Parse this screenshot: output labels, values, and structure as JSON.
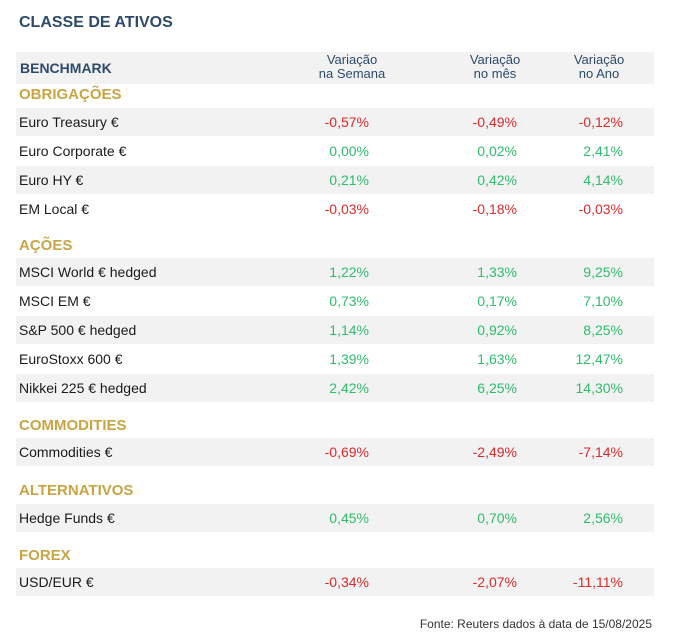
{
  "title": "CLASSE DE ATIVOS",
  "header": {
    "benchmark": "BENCHMARK",
    "col_week": "Variação\nna Semana",
    "col_month": "Variação\nno mês",
    "col_year": "Variação\nno Ano"
  },
  "sections": {
    "obrigacoes": "OBRIGAÇÕES",
    "acoes": "AÇÕES",
    "commodities": "COMMODITIES",
    "alternativos": "ALTERNATIVOS",
    "forex": "FOREX"
  },
  "rows": [
    {
      "name": "Euro Treasury €",
      "week": "-0,57%",
      "month": "-0,49%",
      "year": "-0,12%"
    },
    {
      "name": "Euro Corporate €",
      "week": "0,00%",
      "month": "0,02%",
      "year": "2,41%"
    },
    {
      "name": "Euro HY €",
      "week": "0,21%",
      "month": "0,42%",
      "year": "4,14%"
    },
    {
      "name": "EM Local €",
      "week": "-0,03%",
      "month": "-0,18%",
      "year": "-0,03%"
    },
    {
      "name": "MSCI World € hedged",
      "week": "1,22%",
      "month": "1,33%",
      "year": "9,25%"
    },
    {
      "name": "MSCI EM €",
      "week": "0,73%",
      "month": "0,17%",
      "year": "7,10%"
    },
    {
      "name": "S&P 500 € hedged",
      "week": "1,14%",
      "month": "0,92%",
      "year": "8,25%"
    },
    {
      "name": "EuroStoxx 600 €",
      "week": "1,39%",
      "month": "1,63%",
      "year": "12,47%"
    },
    {
      "name": "Nikkei 225 € hedged",
      "week": "2,42%",
      "month": "6,25%",
      "year": "14,30%"
    },
    {
      "name": "Commodities €",
      "week": "-0,69%",
      "month": "-2,49%",
      "year": "-7,14%"
    },
    {
      "name": "Hedge Funds €",
      "week": "0,45%",
      "month": "0,70%",
      "year": "2,56%"
    },
    {
      "name": "USD/EUR €",
      "week": "-0,34%",
      "month": "-2,07%",
      "year": "-11,11%"
    }
  ],
  "colors": {
    "positive": "#2ebd6b",
    "negative": "#d92b2b",
    "section": "#c8a443",
    "header": "#2d4a6b"
  },
  "source": "Fonte: Reuters dados à data de 15/08/2025"
}
